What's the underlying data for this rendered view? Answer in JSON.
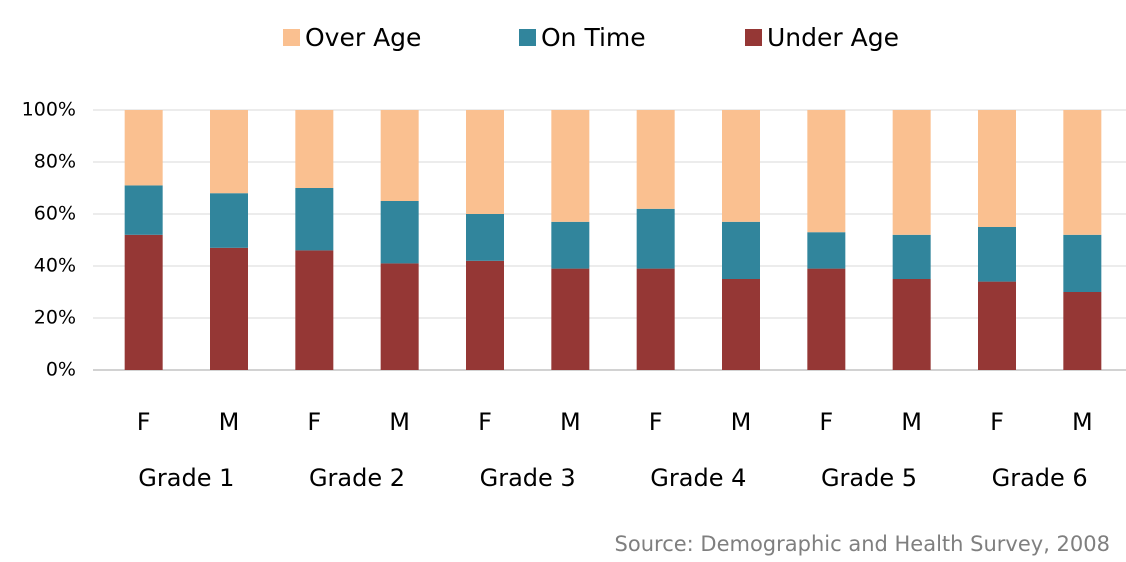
{
  "chart_data": {
    "type": "bar",
    "stacked": true,
    "categories": [
      "F",
      "M",
      "F",
      "M",
      "F",
      "M",
      "F",
      "M",
      "F",
      "M",
      "F",
      "M"
    ],
    "groups": [
      "Grade 1",
      "Grade 2",
      "Grade 3",
      "Grade 4",
      "Grade 5",
      "Grade 6"
    ],
    "series": [
      {
        "name": "Over Age",
        "color": "#fac090",
        "values": [
          29,
          32,
          30,
          35,
          40,
          43,
          38,
          43,
          47,
          48,
          45,
          48
        ]
      },
      {
        "name": "On Time",
        "color": "#31859c",
        "values": [
          19,
          21,
          24,
          24,
          18,
          18,
          23,
          22,
          14,
          17,
          21,
          22
        ]
      },
      {
        "name": "Under Age",
        "color": "#953735",
        "values": [
          52,
          47,
          46,
          41,
          42,
          39,
          39,
          35,
          39,
          35,
          34,
          30
        ]
      }
    ],
    "ylim": [
      0,
      100
    ],
    "yticks": [
      {
        "value": 0,
        "label": "0%"
      },
      {
        "value": 20,
        "label": "20%"
      },
      {
        "value": 40,
        "label": "40%"
      },
      {
        "value": 60,
        "label": "60%"
      },
      {
        "value": 80,
        "label": "80%"
      },
      {
        "value": 100,
        "label": "100%"
      }
    ],
    "grid": true,
    "legend": "top",
    "source": "Source: Demographic and Health Survey, 2008"
  }
}
